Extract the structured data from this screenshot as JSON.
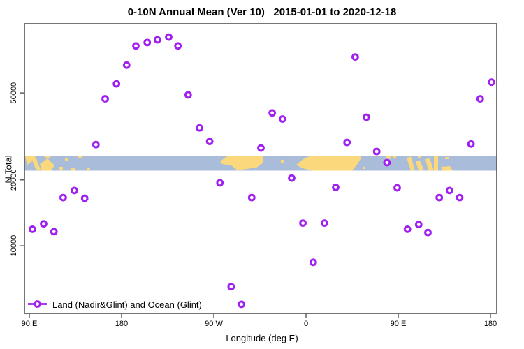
{
  "window": {
    "background": "#FFFFFF"
  },
  "colors": {
    "marker": "#A020F0",
    "ocean": "#A9BCD9",
    "land": "#FBD87B",
    "axis": "#3A3A3A",
    "text": "#000000"
  },
  "chart_data": {
    "type": "scatter",
    "title": "0-10N Annual Mean (Ver 10)   2015-01-01 to 2020-12-18",
    "xlabel": "Longitude (deg E)",
    "ylabel": "N Total",
    "y_scale": "log",
    "ylim": [
      4900,
      103000
    ],
    "grid": false,
    "x_axis_note": "longitude axis wraps eastward starting at 90E over 450 degrees",
    "x_ticks": [
      {
        "label": "90 E",
        "deg": 0
      },
      {
        "label": "180",
        "deg": 90
      },
      {
        "label": "90 W",
        "deg": 180
      },
      {
        "label": "0",
        "deg": 270
      },
      {
        "label": "90 E",
        "deg": 360
      },
      {
        "label": "180",
        "deg": 450
      }
    ],
    "y_ticks": [
      {
        "label": "10000",
        "value": 10000
      },
      {
        "label": "20000",
        "value": 20000
      },
      {
        "label": "50000",
        "value": 50000
      }
    ],
    "legend": {
      "label": "Land (Nadir&Glint) and Ocean (Glint)",
      "position": "bottom-left",
      "marker": "line-open-circle"
    },
    "map_band": {
      "description": "0-10N latitude world-map strip (ocean blue, land yellow) drawn across plot at N ~22000-26000"
    },
    "series": [
      {
        "name": "Land (Nadir&Glint) and Ocean (Glint)",
        "marker": "open-circle",
        "points_deg_n": [
          [
            65,
            29000
          ],
          [
            74,
            47000
          ],
          [
            85,
            55000
          ],
          [
            95,
            67000
          ],
          [
            104,
            82000
          ],
          [
            115,
            85000
          ],
          [
            125,
            87500
          ],
          [
            136,
            90000
          ],
          [
            145,
            82000
          ],
          [
            155,
            49000
          ],
          [
            166,
            34600
          ],
          [
            176,
            30000
          ],
          [
            226,
            28000
          ],
          [
            237,
            40500
          ],
          [
            247,
            38000
          ],
          [
            310,
            29700
          ],
          [
            318,
            73000
          ],
          [
            329,
            38700
          ],
          [
            339,
            27000
          ],
          [
            349,
            24000
          ],
          [
            431,
            29200
          ],
          [
            440,
            47000
          ],
          [
            451,
            56000
          ],
          [
            3,
            11900
          ],
          [
            14,
            12600
          ],
          [
            24,
            11600
          ],
          [
            33,
            16600
          ],
          [
            44,
            17900
          ],
          [
            54,
            16500
          ],
          [
            186,
            19400
          ],
          [
            197,
            6500
          ],
          [
            207,
            5400
          ],
          [
            217,
            16600
          ],
          [
            256,
            20400
          ],
          [
            267,
            12700
          ],
          [
            277,
            8400
          ],
          [
            288,
            12700
          ],
          [
            299,
            18500
          ],
          [
            359,
            18400
          ],
          [
            369,
            11900
          ],
          [
            380,
            12500
          ],
          [
            389,
            11500
          ],
          [
            400,
            16600
          ],
          [
            410,
            17900
          ],
          [
            420,
            16600
          ]
        ]
      }
    ]
  }
}
